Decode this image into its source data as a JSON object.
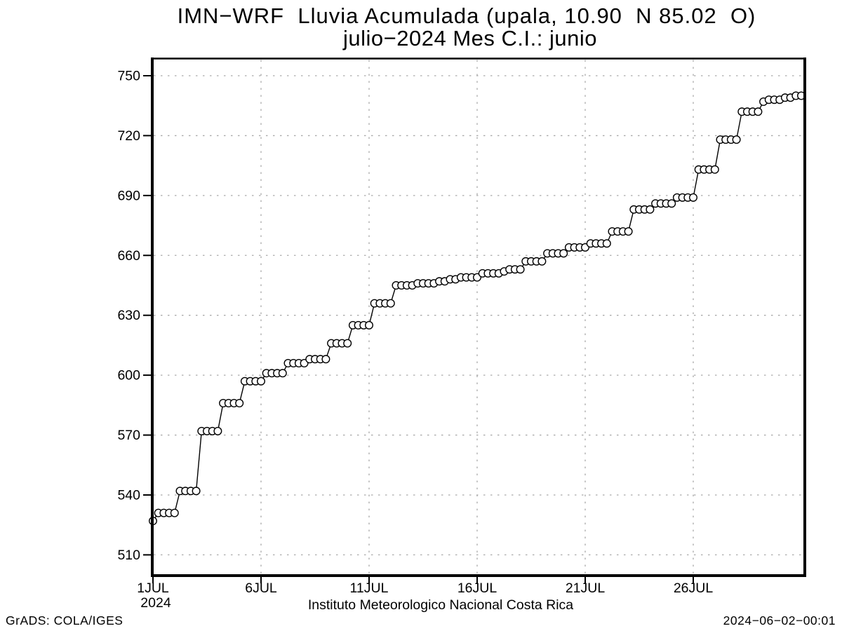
{
  "title": {
    "line1": "IMN−WRF  Lluvia Acumulada (upala, 10.90  N 85.02  O)",
    "line2": "julio−2024 Mes C.I.: junio"
  },
  "footer": {
    "xlabel": "Instituto Meteorologico Nacional Costa Rica",
    "credit": "GrADS: COLA/IGES",
    "timestamp": "2024−06−02−00:01"
  },
  "chart_data": {
    "type": "line",
    "marker": "open-circle",
    "title": "IMN−WRF  Lluvia Acumulada (upala, 10.90  N 85.02  O)",
    "subtitle": "julio−2024 Mes C.I.: junio",
    "xlabel": "Instituto Meteorologico Nacional Costa Rica",
    "ylabel": "",
    "legend": "none",
    "grid": {
      "style": "dashed",
      "color": "#a9a9a9",
      "horizontal": true,
      "vertical": true
    },
    "x_axis": {
      "unit": "date",
      "month": "JUL",
      "year": "2024",
      "start_day": 1.0,
      "step_days": 0.25,
      "xlim_days": [
        0.9,
        31.3
      ],
      "ticks": [
        {
          "day": 1,
          "label": "1JUL",
          "sublabel": "2024"
        },
        {
          "day": 6,
          "label": "6JUL"
        },
        {
          "day": 11,
          "label": "11JUL"
        },
        {
          "day": 16,
          "label": "16JUL"
        },
        {
          "day": 21,
          "label": "21JUL"
        },
        {
          "day": 26,
          "label": "26JUL"
        }
      ]
    },
    "y_axis": {
      "ticks": [
        510,
        540,
        570,
        600,
        630,
        660,
        690,
        720,
        750
      ],
      "ylim": [
        500,
        755
      ]
    },
    "series": [
      {
        "name": "Lluvia Acumulada",
        "values": [
          527,
          531,
          531,
          531,
          531,
          542,
          542,
          542,
          542,
          572,
          572,
          572,
          572,
          586,
          586,
          586,
          586,
          597,
          597,
          597,
          597,
          601,
          601,
          601,
          601,
          606,
          606,
          606,
          606,
          608,
          608,
          608,
          608,
          616,
          616,
          616,
          616,
          625,
          625,
          625,
          625,
          636,
          636,
          636,
          636,
          645,
          645,
          645,
          645,
          646,
          646,
          646,
          646,
          647,
          647,
          648,
          648,
          649,
          649,
          649,
          649,
          651,
          651,
          651,
          651,
          652,
          653,
          653,
          653,
          657,
          657,
          657,
          657,
          661,
          661,
          661,
          661,
          664,
          664,
          664,
          664,
          666,
          666,
          666,
          666,
          672,
          672,
          672,
          672,
          683,
          683,
          683,
          683,
          686,
          686,
          686,
          686,
          689,
          689,
          689,
          689,
          703,
          703,
          703,
          703,
          718,
          718,
          718,
          718,
          732,
          732,
          732,
          732,
          737,
          738,
          738,
          738,
          739,
          739,
          740,
          740
        ]
      }
    ],
    "colors": {
      "line": "#000000",
      "marker_fill": "#ffffff",
      "grid": "#a9a9a9",
      "background": "#ffffff",
      "text": "#000000"
    }
  }
}
